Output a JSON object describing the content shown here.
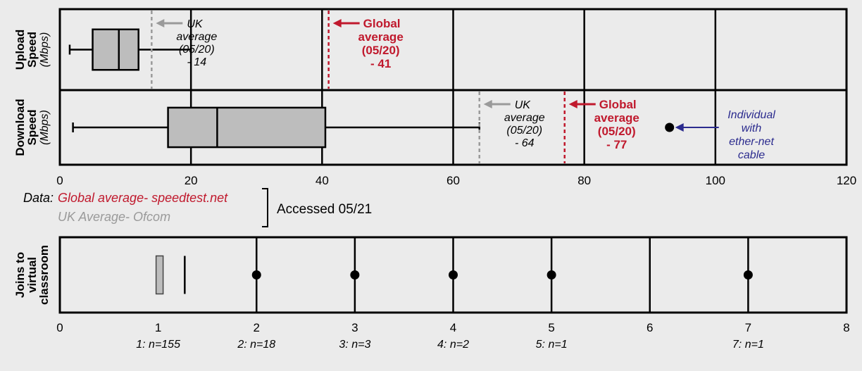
{
  "colors": {
    "background": "#ebebeb",
    "box_fill": "#bdbdbd",
    "global": "#c0192d",
    "uk": "#9a9a9a",
    "individual": "#2b2b8e"
  },
  "chart_data": [
    {
      "type": "box",
      "xlim": [
        0,
        120
      ],
      "x_ticks": [
        "0",
        "20",
        "40",
        "60",
        "80",
        "100",
        "120"
      ],
      "grid": "vertical lines every 20",
      "panels": [
        {
          "ylabel": "Upload Speed",
          "yunit": "(Mbps)",
          "box": {
            "min": 1.5,
            "q1": 5,
            "median": 9,
            "q3": 12,
            "max": 20
          },
          "references": [
            {
              "value": 14,
              "lines": [
                "UK",
                "average",
                "(05/20)",
                "- 14"
              ],
              "color": "uk"
            },
            {
              "value": 41,
              "lines": [
                "Global",
                "average",
                "(05/20)",
                "- 41"
              ],
              "color": "global"
            }
          ]
        },
        {
          "ylabel": "Download Speed",
          "yunit": "(Mbps)",
          "box": {
            "min": 2,
            "q1": 16.5,
            "median": 24,
            "q3": 40.5,
            "max": 64
          },
          "references": [
            {
              "value": 64,
              "lines": [
                "UK",
                "average",
                "(05/20)",
                "- 64"
              ],
              "color": "uk"
            },
            {
              "value": 77,
              "lines": [
                "Global",
                "average",
                "(05/20)",
                "- 77"
              ],
              "color": "global"
            }
          ],
          "outlier": {
            "value": 93,
            "lines": [
              "Individual",
              "with",
              "ether-net",
              "cable"
            ]
          }
        }
      ]
    },
    {
      "type": "box",
      "xlim": [
        0,
        8
      ],
      "x_ticks": [
        "0",
        "1",
        "2",
        "3",
        "4",
        "5",
        "6",
        "7",
        "8"
      ],
      "grid": "vertical lines every 1",
      "ylabel": "Joins to virtual classroom",
      "box": {
        "q1": 1,
        "median": 1,
        "q3": 1.05,
        "whisker": 1.27
      },
      "outliers": [
        2,
        3,
        4,
        5,
        7
      ],
      "counts": [
        {
          "x": 1,
          "label": "1: n=155"
        },
        {
          "x": 2,
          "label": "2: n=18"
        },
        {
          "x": 3,
          "label": "3: n=3"
        },
        {
          "x": 4,
          "label": "4: n=2"
        },
        {
          "x": 5,
          "label": "5: n=1"
        },
        {
          "x": 7,
          "label": "7: n=1"
        }
      ]
    }
  ],
  "source": {
    "prefix": "Data:",
    "global": "Global average- speedtest.net",
    "uk": "UK Average- Ofcom",
    "accessed": "Accessed 05/21"
  }
}
